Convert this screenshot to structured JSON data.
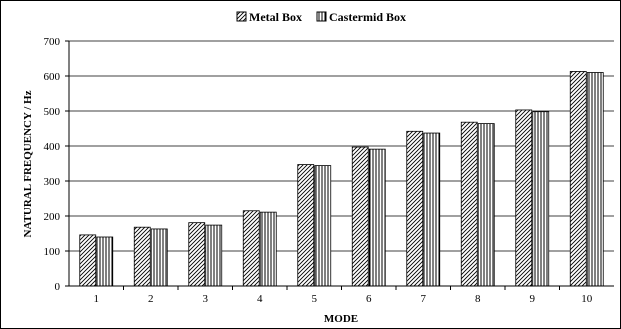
{
  "chart_data": {
    "type": "bar",
    "title": "",
    "xlabel": "MODE",
    "ylabel": "NATURAL FREQUENCY / Hz",
    "categories": [
      "1",
      "2",
      "3",
      "4",
      "5",
      "6",
      "7",
      "8",
      "9",
      "10"
    ],
    "series": [
      {
        "name": "Metal Box",
        "values": [
          146,
          168,
          181,
          215,
          347,
          397,
          442,
          468,
          503,
          613
        ],
        "pattern": "diagonal-hatch"
      },
      {
        "name": "Castermid Box",
        "values": [
          140,
          163,
          174,
          211,
          344,
          391,
          437,
          464,
          498,
          610
        ],
        "pattern": "vertical-hatch"
      }
    ],
    "ylim": [
      0,
      700
    ],
    "yticks": [
      0,
      100,
      200,
      300,
      400,
      500,
      600,
      700
    ],
    "grid": true,
    "legend_position": "top-center",
    "colors": {
      "bar_stroke": "#000000",
      "grid": "#000000",
      "hatch": "#000000"
    }
  }
}
